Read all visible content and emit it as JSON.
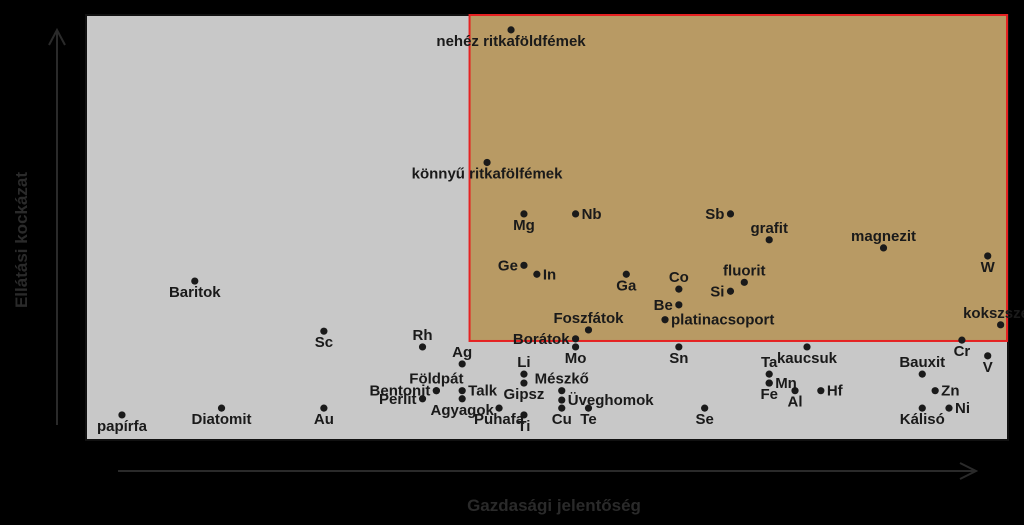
{
  "chart_data": {
    "type": "scatter",
    "title": "",
    "xlabel": "Gazdasági jelentőség",
    "ylabel": "Ellátási kockázat",
    "xlim": [
      0,
      100
    ],
    "ylim": [
      0,
      100
    ],
    "colors": {
      "plot_background": "#c8c8c8",
      "critical_region_fill": "#b89a64",
      "critical_region_border": "#e52222",
      "marker": "#1a1a1a",
      "page_background": "#000000",
      "axis_arrow": "#2a2a2a"
    },
    "critical_region": {
      "x_from": 41.6,
      "x_to": 100,
      "y_from": 23.3,
      "y_to": 100
    },
    "points": [
      {
        "label": "nehéz ritkaföldfémek",
        "x": 46.1,
        "y": 96.5,
        "label_pos": "below"
      },
      {
        "label": "könnyű ritkafölfémek",
        "x": 43.5,
        "y": 65.3,
        "label_pos": "below"
      },
      {
        "label": "Mg",
        "x": 47.5,
        "y": 53.2,
        "label_pos": "below"
      },
      {
        "label": "Nb",
        "x": 53.1,
        "y": 53.2,
        "label_pos": "right"
      },
      {
        "label": "Sb",
        "x": 69.9,
        "y": 53.2,
        "label_pos": "left"
      },
      {
        "label": "grafit",
        "x": 74.1,
        "y": 47.1,
        "label_pos": "above"
      },
      {
        "label": "magnezit",
        "x": 86.5,
        "y": 45.2,
        "label_pos": "above"
      },
      {
        "label": "W",
        "x": 97.8,
        "y": 43.3,
        "label_pos": "below"
      },
      {
        "label": "Ge",
        "x": 47.5,
        "y": 41.1,
        "label_pos": "left"
      },
      {
        "label": "In",
        "x": 48.9,
        "y": 39.0,
        "label_pos": "right"
      },
      {
        "label": "Ga",
        "x": 58.6,
        "y": 39.0,
        "label_pos": "below"
      },
      {
        "label": "Co",
        "x": 64.3,
        "y": 35.5,
        "label_pos": "above"
      },
      {
        "label": "fluorit",
        "x": 71.4,
        "y": 37.1,
        "label_pos": "above"
      },
      {
        "label": "Si",
        "x": 69.9,
        "y": 35.0,
        "label_pos": "left"
      },
      {
        "label": "Be",
        "x": 64.3,
        "y": 31.8,
        "label_pos": "left"
      },
      {
        "label": "platinacsoport",
        "x": 62.8,
        "y": 28.3,
        "label_pos": "right"
      },
      {
        "label": "Foszfátok",
        "x": 54.5,
        "y": 25.9,
        "label_pos": "above"
      },
      {
        "label": "Borátok",
        "x": 53.1,
        "y": 23.8,
        "label_pos": "left"
      },
      {
        "label": "kokszszén",
        "x": 99.2,
        "y": 27.1,
        "label_pos": "above"
      },
      {
        "label": "Baritok",
        "x": 11.8,
        "y": 37.4,
        "label_pos": "below"
      },
      {
        "label": "Sc",
        "x": 25.8,
        "y": 25.6,
        "label_pos": "below"
      },
      {
        "label": "Rh",
        "x": 36.5,
        "y": 21.9,
        "label_pos": "above"
      },
      {
        "label": "Ag",
        "x": 40.8,
        "y": 17.9,
        "label_pos": "above"
      },
      {
        "label": "Földpát",
        "x": 38.0,
        "y": 11.6,
        "label_pos": "above"
      },
      {
        "label": "Bentonit",
        "x": 38.0,
        "y": 11.6,
        "label_pos": "left"
      },
      {
        "label": "Talk",
        "x": 40.8,
        "y": 11.6,
        "label_pos": "right"
      },
      {
        "label": "Perlit",
        "x": 36.5,
        "y": 9.7,
        "label_pos": "left"
      },
      {
        "label": "Agyagok",
        "x": 40.8,
        "y": 9.7,
        "label_pos": "below"
      },
      {
        "label": "Puhafa",
        "x": 44.8,
        "y": 7.5,
        "label_pos": "below"
      },
      {
        "label": "Li",
        "x": 47.5,
        "y": 15.5,
        "label_pos": "above"
      },
      {
        "label": "Gipsz",
        "x": 47.5,
        "y": 13.4,
        "label_pos": "below"
      },
      {
        "label": "Mo",
        "x": 53.1,
        "y": 21.9,
        "label_pos": "below"
      },
      {
        "label": "Mészkő",
        "x": 51.6,
        "y": 11.6,
        "label_pos": "above"
      },
      {
        "label": "Üveghomok",
        "x": 51.6,
        "y": 9.4,
        "label_pos": "right"
      },
      {
        "label": "Cu",
        "x": 51.6,
        "y": 7.5,
        "label_pos": "below"
      },
      {
        "label": "Ti",
        "x": 47.5,
        "y": 5.9,
        "label_pos": "below"
      },
      {
        "label": "Te",
        "x": 54.5,
        "y": 7.5,
        "label_pos": "below"
      },
      {
        "label": "Sn",
        "x": 64.3,
        "y": 21.9,
        "label_pos": "below"
      },
      {
        "label": "Se",
        "x": 67.1,
        "y": 7.5,
        "label_pos": "below"
      },
      {
        "label": "Ta",
        "x": 74.1,
        "y": 15.5,
        "label_pos": "above"
      },
      {
        "label": "kaucsuk",
        "x": 78.2,
        "y": 21.9,
        "label_pos": "below"
      },
      {
        "label": "Mn",
        "x": 74.1,
        "y": 13.4,
        "label_pos": "right"
      },
      {
        "label": "Fe",
        "x": 74.1,
        "y": 13.4,
        "label_pos": "below"
      },
      {
        "label": "Al",
        "x": 76.9,
        "y": 11.6,
        "label_pos": "below"
      },
      {
        "label": "Hf",
        "x": 79.7,
        "y": 11.6,
        "label_pos": "right"
      },
      {
        "label": "Bauxit",
        "x": 90.7,
        "y": 15.5,
        "label_pos": "above"
      },
      {
        "label": "Cr",
        "x": 95.0,
        "y": 23.5,
        "label_pos": "below"
      },
      {
        "label": "V",
        "x": 97.8,
        "y": 19.8,
        "label_pos": "below"
      },
      {
        "label": "Zn",
        "x": 92.1,
        "y": 11.6,
        "label_pos": "right"
      },
      {
        "label": "Ni",
        "x": 93.6,
        "y": 7.5,
        "label_pos": "right"
      },
      {
        "label": "Kálisó",
        "x": 90.7,
        "y": 7.5,
        "label_pos": "below"
      },
      {
        "label": "papírfa",
        "x": 3.9,
        "y": 5.9,
        "label_pos": "below"
      },
      {
        "label": "Diatomit",
        "x": 14.7,
        "y": 7.5,
        "label_pos": "below"
      },
      {
        "label": "Au",
        "x": 25.8,
        "y": 7.5,
        "label_pos": "below"
      }
    ]
  }
}
